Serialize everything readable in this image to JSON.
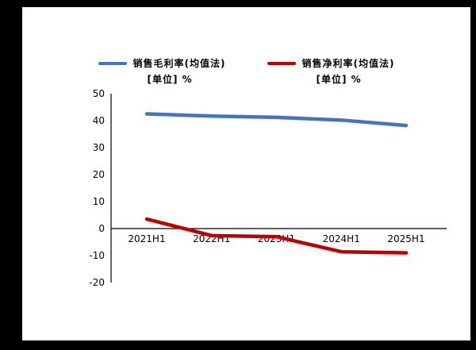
{
  "chart_data": {
    "type": "line",
    "categories": [
      "2021H1",
      "2022H1",
      "2023H1",
      "2024H1",
      "2025H1"
    ],
    "series": [
      {
        "name": "销售毛利率(均值法)",
        "unit_label": "[单位] %",
        "color": "#4472C4",
        "values": [
          42.5,
          41.7,
          41.2,
          40.2,
          38.2
        ]
      },
      {
        "name": "销售净利率(均值法)",
        "unit_label": "[单位] %",
        "color": "#C00000",
        "values": [
          3.5,
          -2.6,
          -3.0,
          -8.6,
          -9.0
        ]
      }
    ],
    "title": "",
    "xlabel": "",
    "ylabel": "",
    "ylim": [
      -20,
      50
    ],
    "yticks": [
      50,
      40,
      30,
      20,
      10,
      0,
      -10,
      -20
    ],
    "grid": false,
    "legend_position": "top",
    "axis_color": "#000000"
  }
}
